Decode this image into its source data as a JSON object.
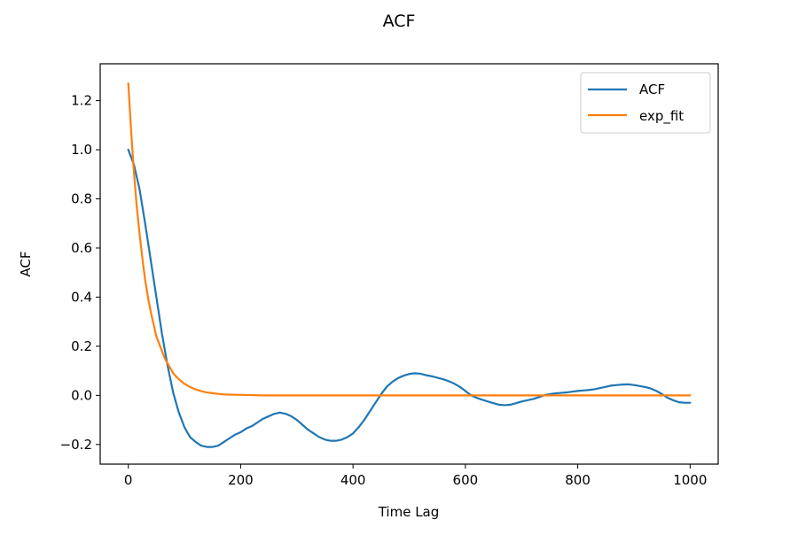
{
  "chart_data": {
    "type": "line",
    "title": "ACF",
    "xlabel": "Time Lag",
    "ylabel": "ACF",
    "xlim": [
      -50,
      1050
    ],
    "ylim": [
      -0.28,
      1.35
    ],
    "xticks": [
      0,
      200,
      400,
      600,
      800,
      1000
    ],
    "xtick_labels": [
      "0",
      "200",
      "400",
      "600",
      "800",
      "1000"
    ],
    "yticks": [
      -0.2,
      0.0,
      0.2,
      0.4,
      0.6,
      0.8,
      1.0,
      1.2
    ],
    "ytick_labels": [
      "−0.2",
      "0.0",
      "0.2",
      "0.4",
      "0.6",
      "0.8",
      "1.0",
      "1.2"
    ],
    "grid": false,
    "legend_position": "top-right",
    "series": [
      {
        "name": "ACF",
        "color": "#1f77b4",
        "x": [
          0,
          10,
          20,
          30,
          40,
          50,
          60,
          70,
          80,
          90,
          100,
          110,
          120,
          130,
          140,
          150,
          160,
          170,
          180,
          190,
          200,
          210,
          220,
          230,
          240,
          250,
          260,
          270,
          280,
          290,
          300,
          310,
          320,
          330,
          340,
          350,
          360,
          370,
          380,
          390,
          400,
          410,
          420,
          430,
          440,
          450,
          460,
          470,
          480,
          490,
          500,
          510,
          520,
          530,
          540,
          550,
          560,
          570,
          580,
          590,
          600,
          610,
          620,
          630,
          640,
          650,
          660,
          670,
          680,
          690,
          700,
          710,
          720,
          730,
          740,
          750,
          760,
          770,
          780,
          790,
          800,
          810,
          820,
          830,
          840,
          850,
          860,
          870,
          880,
          890,
          900,
          910,
          920,
          930,
          940,
          950,
          960,
          970,
          980,
          990,
          1000
        ],
        "y": [
          1.0,
          0.94,
          0.84,
          0.7,
          0.55,
          0.4,
          0.25,
          0.12,
          0.01,
          -0.07,
          -0.13,
          -0.17,
          -0.19,
          -0.205,
          -0.21,
          -0.21,
          -0.205,
          -0.19,
          -0.175,
          -0.16,
          -0.15,
          -0.135,
          -0.125,
          -0.11,
          -0.095,
          -0.085,
          -0.075,
          -0.07,
          -0.075,
          -0.085,
          -0.1,
          -0.12,
          -0.14,
          -0.155,
          -0.17,
          -0.18,
          -0.185,
          -0.185,
          -0.18,
          -0.17,
          -0.155,
          -0.13,
          -0.1,
          -0.065,
          -0.03,
          0.005,
          0.035,
          0.055,
          0.07,
          0.08,
          0.087,
          0.09,
          0.088,
          0.082,
          0.078,
          0.072,
          0.066,
          0.058,
          0.048,
          0.035,
          0.018,
          0.0,
          -0.01,
          -0.018,
          -0.025,
          -0.032,
          -0.038,
          -0.04,
          -0.038,
          -0.032,
          -0.025,
          -0.02,
          -0.015,
          -0.008,
          0.0,
          0.005,
          0.008,
          0.01,
          0.012,
          0.015,
          0.018,
          0.02,
          0.022,
          0.025,
          0.03,
          0.035,
          0.04,
          0.042,
          0.044,
          0.045,
          0.042,
          0.038,
          0.034,
          0.028,
          0.018,
          0.005,
          -0.01,
          -0.02,
          -0.028,
          -0.03,
          -0.03
        ]
      },
      {
        "name": "exp_fit",
        "color": "#ff7f0e",
        "x": [
          0,
          5,
          10,
          15,
          20,
          25,
          30,
          35,
          40,
          45,
          50,
          55,
          60,
          65,
          70,
          75,
          80,
          85,
          90,
          95,
          100,
          110,
          120,
          130,
          140,
          150,
          160,
          170,
          180,
          200,
          220,
          240,
          260,
          280,
          300,
          350,
          400,
          500,
          600,
          700,
          800,
          900,
          1000
        ],
        "y": [
          1.27,
          1.08,
          0.91,
          0.77,
          0.66,
          0.56,
          0.47,
          0.4,
          0.34,
          0.29,
          0.24,
          0.21,
          0.18,
          0.15,
          0.13,
          0.11,
          0.09,
          0.077,
          0.066,
          0.056,
          0.047,
          0.034,
          0.024,
          0.017,
          0.012,
          0.009,
          0.006,
          0.004,
          0.003,
          0.002,
          0.001,
          0.0,
          0.0,
          0.0,
          0.0,
          0.0,
          0.0,
          0.0,
          0.0,
          0.0,
          0.0,
          0.0,
          0.0
        ]
      }
    ]
  }
}
